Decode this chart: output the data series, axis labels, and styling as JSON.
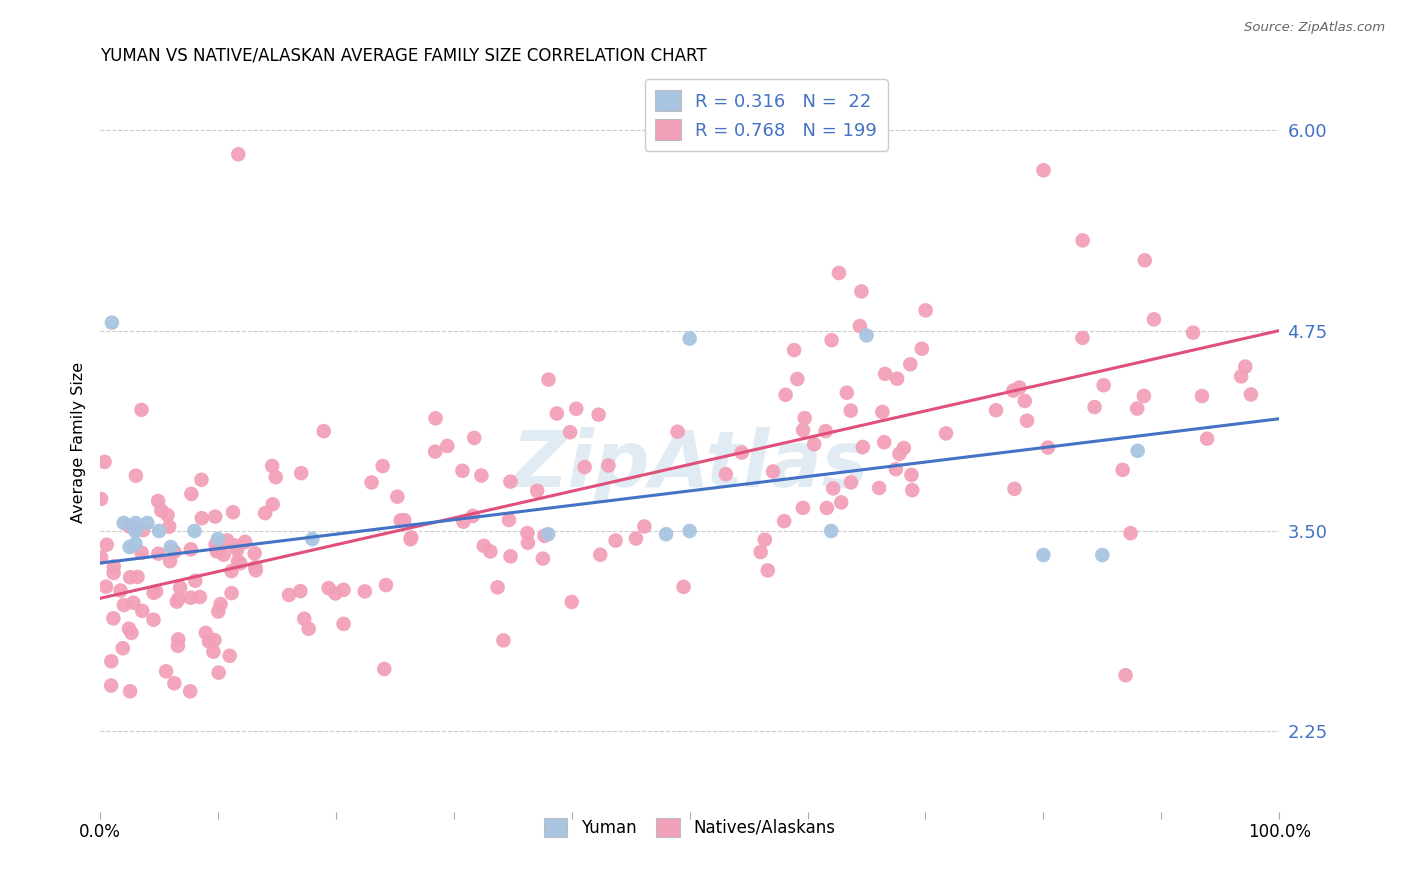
{
  "title": "YUMAN VS NATIVE/ALASKAN AVERAGE FAMILY SIZE CORRELATION CHART",
  "source": "Source: ZipAtlas.com",
  "ylabel": "Average Family Size",
  "right_yticks": [
    2.25,
    3.5,
    4.75,
    6.0
  ],
  "yuman_R": 0.316,
  "yuman_N": 22,
  "native_R": 0.768,
  "native_N": 199,
  "yuman_color": "#a8c4e0",
  "native_color": "#f2a0b8",
  "yuman_line_color": "#4472c4",
  "native_line_color": "#e0507a",
  "legend_text_color": "#4472c4",
  "watermark": "ZipAtlas",
  "ymin": 1.75,
  "ymax": 6.35,
  "xmin": 0.0,
  "xmax": 1.0,
  "blue_line_x0": 0.0,
  "blue_line_y0": 3.3,
  "blue_line_x1": 1.0,
  "blue_line_y1": 4.2,
  "pink_line_x0": 0.0,
  "pink_line_y0": 3.08,
  "pink_line_x1": 1.0,
  "pink_line_y1": 4.75,
  "yuman_x": [
    0.01,
    0.02,
    0.025,
    0.03,
    0.03,
    0.03,
    0.03,
    0.04,
    0.05,
    0.06,
    0.08,
    0.1,
    0.18,
    0.38,
    0.48,
    0.5,
    0.5,
    0.62,
    0.65,
    0.8,
    0.85,
    0.88
  ],
  "yuman_y": [
    4.8,
    3.55,
    3.4,
    3.5,
    3.5,
    3.42,
    3.55,
    3.55,
    3.5,
    3.4,
    3.5,
    3.45,
    3.45,
    3.48,
    3.48,
    4.7,
    3.5,
    3.5,
    4.72,
    3.35,
    3.35,
    4.0
  ],
  "native_seed": 99
}
